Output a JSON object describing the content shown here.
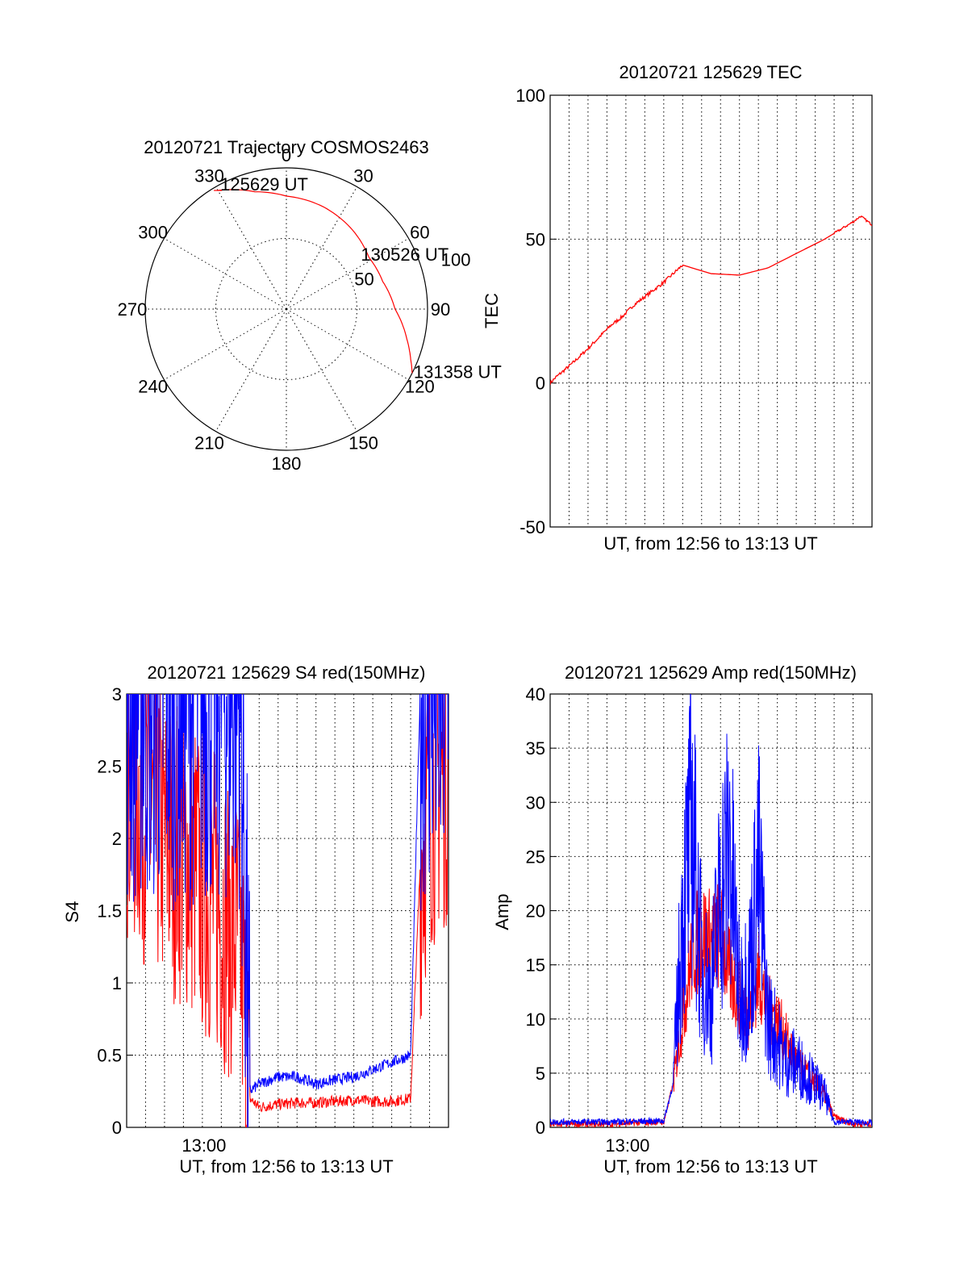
{
  "chart_data": [
    {
      "type": "polar",
      "title": "20120721 Trajectory COSMOS2463",
      "angle_labels": [
        "0",
        "30",
        "60",
        "90",
        "120",
        "150",
        "180",
        "210",
        "240",
        "270",
        "300",
        "330"
      ],
      "radial_labels": [
        "50",
        "100"
      ],
      "rings": [
        50,
        100
      ],
      "trajectory": {
        "color": "#ff0000",
        "points_az_r": [
          [
            330,
            97
          ],
          [
            345,
            86
          ],
          [
            0,
            80
          ],
          [
            20,
            77
          ],
          [
            40,
            73
          ],
          [
            58,
            69
          ],
          [
            74,
            71
          ],
          [
            90,
            77
          ],
          [
            104,
            88
          ],
          [
            112,
            95
          ],
          [
            117,
            100
          ]
        ],
        "annotations": [
          {
            "label": "125629 UT",
            "az": 330,
            "r": 97
          },
          {
            "label": "130526 UT",
            "az": 58,
            "r": 69
          },
          {
            "label": "131358 UT",
            "az": 117,
            "r": 100
          }
        ]
      }
    },
    {
      "type": "line",
      "title": "20120721 125629 TEC",
      "xlabel": "UT, from 12:56 to 13:13 UT",
      "ylabel": "TEC",
      "ylim": [
        -50,
        100
      ],
      "y_ticks": [
        "-50",
        "0",
        "50",
        "100"
      ],
      "grid": true,
      "x_minutes": [
        0,
        0.3,
        1.2,
        2.0,
        2.6,
        3.2,
        3.8,
        4.4,
        5.2,
        6.0,
        7.0,
        8.5,
        10.0,
        11.5,
        13.0,
        14.5,
        16.0,
        16.4,
        17.0
      ],
      "series": [
        {
          "color": "#ff0000",
          "values": [
            0,
            2,
            7,
            12,
            16,
            20,
            23,
            27,
            31,
            35,
            41,
            38,
            37.5,
            40,
            45,
            50,
            56,
            58,
            55
          ]
        }
      ]
    },
    {
      "type": "line",
      "title": "20120721 125629 S4 red(150MHz)",
      "xlabel": "UT, from 12:56 to 13:13 UT",
      "ylabel": "S4",
      "ylim": [
        0,
        3
      ],
      "y_ticks": [
        "0",
        "0.5",
        "1",
        "1.5",
        "2",
        "2.5",
        "3"
      ],
      "x_ticks": [
        "13:00"
      ],
      "grid": true,
      "x_minutes": [
        0,
        1,
        2,
        3,
        4,
        5,
        6,
        6.5,
        7,
        8,
        9,
        10,
        11,
        12,
        13,
        14,
        15,
        15.5,
        16,
        17
      ],
      "series": [
        {
          "name": "",
          "color": "#ff0000",
          "values": [
            2.4,
            2.2,
            2.0,
            1.9,
            1.7,
            1.5,
            1.3,
            0.2,
            0.14,
            0.16,
            0.17,
            0.17,
            0.18,
            0.19,
            0.18,
            0.18,
            0.2,
            1.8,
            2.3,
            2.5
          ]
        },
        {
          "name": "",
          "color": "#0000ff",
          "values": [
            3,
            3,
            3,
            3,
            3,
            3,
            3,
            0.25,
            0.3,
            0.35,
            0.35,
            0.3,
            0.33,
            0.35,
            0.4,
            0.45,
            0.5,
            3,
            3,
            3
          ]
        }
      ]
    },
    {
      "type": "line",
      "title": "20120721 125629 Amp red(150MHz)",
      "xlabel": "UT, from 12:56 to 13:13 UT",
      "ylabel": "Amp",
      "ylim": [
        0,
        40
      ],
      "y_ticks": [
        "0",
        "5",
        "10",
        "15",
        "20",
        "25",
        "30",
        "35",
        "40"
      ],
      "x_ticks": [
        "13:00"
      ],
      "grid": true,
      "x_minutes": [
        0,
        3,
        6,
        6.5,
        7,
        7.5,
        8,
        8.5,
        9,
        9.5,
        10,
        10.5,
        11,
        11.5,
        12,
        12.5,
        13,
        13.5,
        14,
        14.5,
        15,
        16,
        17
      ],
      "series": [
        {
          "name": "",
          "color": "#ff0000",
          "values": [
            0.3,
            0.3,
            0.5,
            4,
            10,
            16,
            18,
            17,
            18,
            14,
            12,
            10,
            14,
            11,
            10,
            8,
            6,
            5,
            4,
            3,
            1,
            0.3,
            0.3
          ]
        },
        {
          "name": "",
          "color": "#0000ff",
          "values": [
            0.5,
            0.5,
            0.6,
            4,
            20,
            28,
            15,
            12,
            22,
            26,
            12,
            14,
            24,
            10,
            8,
            6,
            6,
            5,
            4,
            3,
            0.5,
            0.5,
            0.4
          ]
        }
      ]
    }
  ]
}
